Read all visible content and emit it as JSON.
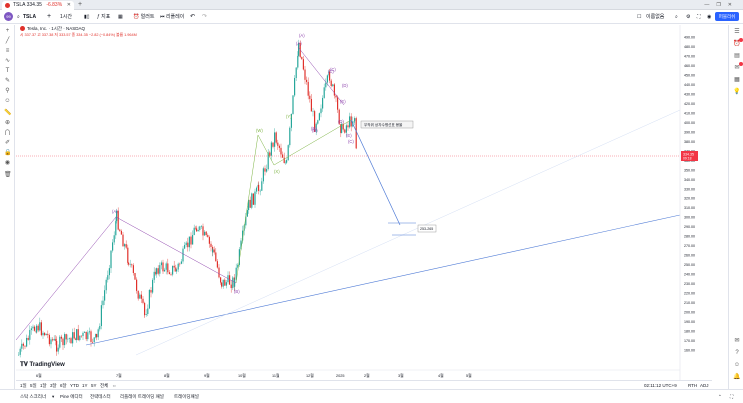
{
  "browser": {
    "tab_title": "TSLA",
    "tab_price": "334.35",
    "tab_change": "-6.83%",
    "new_tab": "+",
    "window_controls": [
      "—",
      "❐",
      "✕"
    ]
  },
  "toolbar": {
    "logo": "99",
    "symbol": "TSLA",
    "add": "+",
    "interval": "1시간",
    "indicators": "지표",
    "layout_icon": "layout-grid-icon",
    "alert": "얼러트",
    "replay": "리플레이",
    "undo": "↶",
    "redo": "↷",
    "layout_name": "이름없음",
    "publish": "퍼블리쉬"
  },
  "legend": {
    "name": "Tesla, Inc. · 1시간 · NASDAQ",
    "ohlc": "시 337.37  고 337.38  저 333.57  종 334.35  −2.82 (−0.84%)  볼륨 1.964M"
  },
  "price_axis": {
    "ticks": [
      "490.00",
      "480.00",
      "470.00",
      "460.00",
      "450.00",
      "440.00",
      "430.00",
      "420.00",
      "410.00",
      "400.00",
      "390.00",
      "380.00",
      "370.00",
      "360.00",
      "350.00",
      "340.00",
      "330.00",
      "320.00",
      "310.00",
      "300.00",
      "290.00",
      "280.00",
      "270.00",
      "260.00",
      "250.00",
      "240.00",
      "230.00",
      "220.00",
      "210.00",
      "200.00",
      "190.00",
      "180.00",
      "170.00",
      "160.00"
    ],
    "current_price": "334.35",
    "current_time": "09:18"
  },
  "time_axis": {
    "ticks": [
      "6월",
      "7월",
      "8월",
      "9월",
      "10월",
      "11월",
      "12월",
      "2025",
      "2월",
      "3월",
      "4월",
      "5월"
    ]
  },
  "annotations": {
    "callout": "무작위 상자수평선표 봉을",
    "target": "253-265",
    "waves": [
      "(A)",
      "(B)",
      "(C)",
      "(D)",
      "(E)",
      "(W)",
      "(X)",
      "(Y)",
      "(A)",
      "(B)",
      "(C)",
      "(D)",
      "(E)",
      "(A)",
      "(B)",
      "(C)"
    ]
  },
  "ranges": [
    "1일",
    "5일",
    "1달",
    "3달",
    "6달",
    "YTD",
    "1Y",
    "5Y",
    "전체"
  ],
  "status": {
    "time": "02:11:12 UTC+9",
    "session": "RTH",
    "adj": "ADJ"
  },
  "footer": {
    "tabs": [
      "스탁 스크리너",
      "Pine 에디터",
      "전략테스터",
      "리플레이 트레이딩 패널",
      "트레이딩패널"
    ]
  },
  "branding": {
    "tradingview": "TradingView"
  },
  "colors": {
    "accent": "#2962ff",
    "down": "#e0312b",
    "up": "#26a69a",
    "wave_purple": "#8e44ad",
    "wave_green": "#7cb342",
    "trend_blue": "#4f7bd6"
  }
}
